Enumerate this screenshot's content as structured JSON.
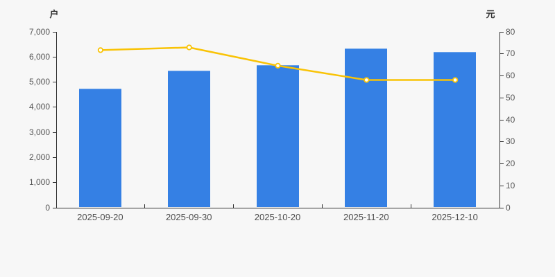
{
  "chart_data": {
    "type": "combo-bar-line",
    "title": "",
    "categories": [
      "2025-09-20",
      "2025-09-30",
      "2025-10-20",
      "2025-11-20",
      "2025-12-10"
    ],
    "series": [
      {
        "name": "户",
        "type": "bar",
        "axis": "left",
        "values": [
          4720,
          5450,
          5650,
          6330,
          6200
        ],
        "color": "#3580e4"
      },
      {
        "name": "元",
        "type": "line",
        "axis": "right",
        "values": [
          71.7,
          72.9,
          64.6,
          58.1,
          58.1
        ],
        "color": "#f9c306",
        "marker": "empty-circle",
        "marker_fill": "#ffffff"
      }
    ],
    "left_axis": {
      "name": "户",
      "min": 0,
      "max": 7000,
      "step": 1000,
      "tick_labels_top_down": [
        "7,000",
        "6,000",
        "5,000",
        "4,000",
        "3,000",
        "2,000",
        "1,000",
        "0"
      ]
    },
    "right_axis": {
      "name": "元",
      "min": 0,
      "max": 80,
      "step": 10,
      "tick_labels_top_down": [
        "80",
        "70",
        "60",
        "50",
        "40",
        "30",
        "20",
        "10",
        "0"
      ]
    },
    "legend": "none",
    "grid": "off",
    "background_color": "#f7f7f7",
    "axis_color": "#333333",
    "tick_text_color": "#555555"
  }
}
